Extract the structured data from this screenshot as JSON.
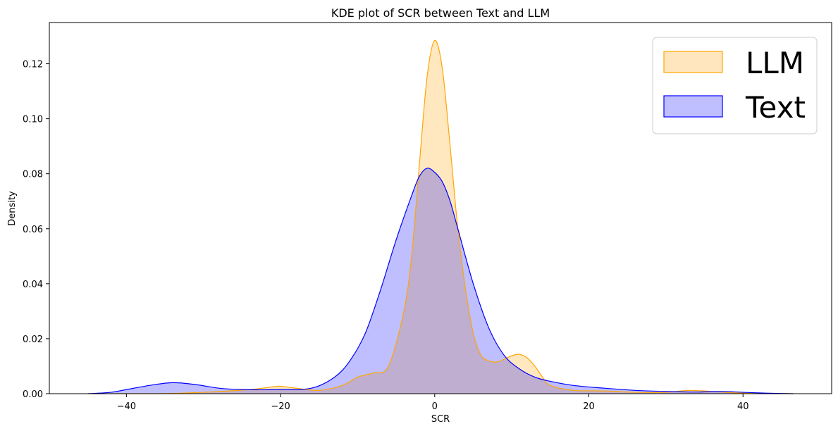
{
  "chart_data": {
    "type": "area",
    "title": "KDE plot of SCR between Text and LLM",
    "xlabel": "SCR",
    "ylabel": "Density",
    "xlim": [
      -50,
      51.5
    ],
    "ylim": [
      0,
      0.135
    ],
    "x_ticks": [
      -40,
      -20,
      0,
      20,
      40
    ],
    "y_ticks": [
      0.0,
      0.02,
      0.04,
      0.06,
      0.08,
      0.1,
      0.12
    ],
    "x_tick_labels": [
      "−40",
      "−20",
      "0",
      "20",
      "40"
    ],
    "y_tick_labels": [
      "0.00",
      "0.02",
      "0.04",
      "0.06",
      "0.08",
      "0.10",
      "0.12"
    ],
    "grid": false,
    "legend_position": "top-right",
    "series": [
      {
        "name": "LLM",
        "line_color": "#ffa500",
        "fill_color": "#ffe6bf",
        "x": [
          -45,
          -36,
          -30,
          -24,
          -21,
          -20,
          -18,
          -15,
          -12,
          -10,
          -8,
          -6,
          -4,
          -3,
          -2,
          -1,
          0,
          1,
          2,
          3,
          4,
          5,
          6,
          7,
          8,
          9,
          10,
          11,
          12,
          13,
          14,
          15,
          18,
          22,
          26,
          30,
          33,
          36,
          40,
          46.5
        ],
        "values": [
          0.0,
          0.0,
          0.0005,
          0.0015,
          0.0025,
          0.0027,
          0.002,
          0.0012,
          0.003,
          0.006,
          0.0075,
          0.01,
          0.03,
          0.05,
          0.083,
          0.115,
          0.1285,
          0.118,
          0.09,
          0.06,
          0.038,
          0.022,
          0.014,
          0.012,
          0.0115,
          0.0125,
          0.0138,
          0.0143,
          0.013,
          0.01,
          0.006,
          0.003,
          0.0012,
          0.001,
          0.0005,
          0.0005,
          0.0012,
          0.0008,
          0.0002,
          0.0
        ]
      },
      {
        "name": "Text",
        "line_color": "#0000ff",
        "fill_color": "#bfbfff",
        "x": [
          -45,
          -42,
          -40,
          -37,
          -34,
          -31,
          -28,
          -25,
          -20,
          -16,
          -13,
          -11,
          -9,
          -7,
          -5,
          -3,
          -2,
          -1,
          0,
          1,
          2,
          3,
          5,
          7,
          9,
          11,
          13,
          15,
          18,
          22,
          26,
          30,
          34,
          37,
          40,
          43,
          46.5
        ],
        "values": [
          0.0,
          0.0005,
          0.0015,
          0.003,
          0.004,
          0.0033,
          0.002,
          0.0015,
          0.0015,
          0.002,
          0.006,
          0.012,
          0.022,
          0.038,
          0.056,
          0.072,
          0.079,
          0.082,
          0.0805,
          0.077,
          0.07,
          0.06,
          0.04,
          0.024,
          0.014,
          0.009,
          0.006,
          0.0045,
          0.003,
          0.002,
          0.0012,
          0.0008,
          0.0006,
          0.0008,
          0.0005,
          0.0002,
          0.0
        ]
      }
    ]
  }
}
